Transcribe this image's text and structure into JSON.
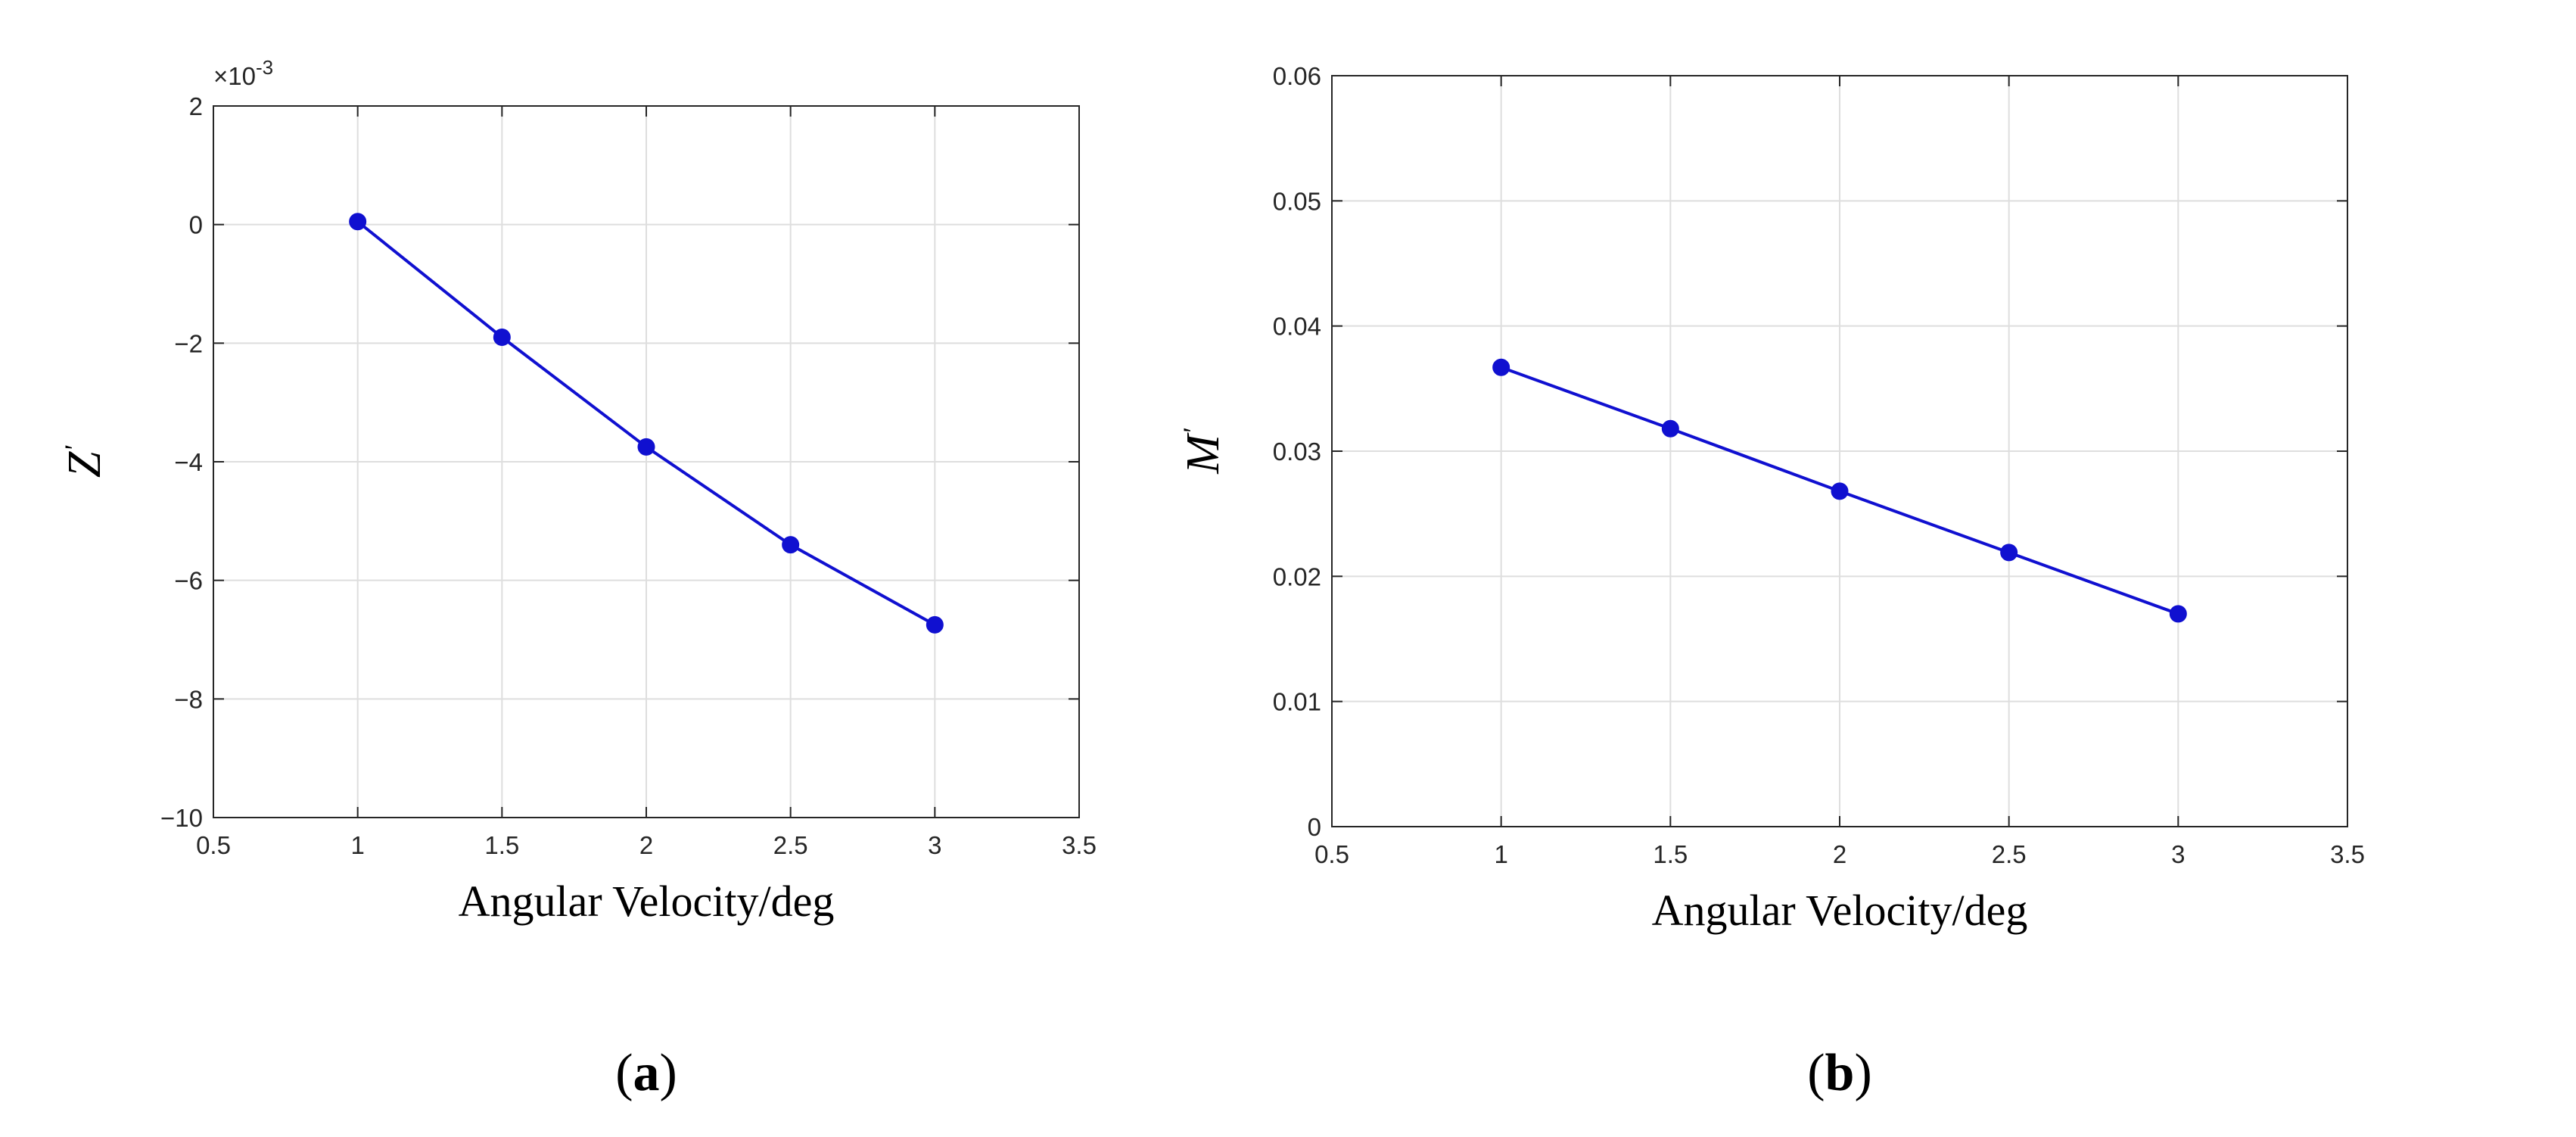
{
  "chart_data": [
    {
      "type": "line",
      "panel_label": "a",
      "xlabel": "Angular Velocity/deg",
      "ylabel": "Z",
      "ylabel_prime": "'",
      "y_exponent": "×10",
      "y_exponent_power": "-3",
      "xlim": [
        0.5,
        3.5
      ],
      "ylim": [
        -10,
        2
      ],
      "xticks": [
        0.5,
        1,
        1.5,
        2,
        2.5,
        3,
        3.5
      ],
      "xtick_labels": [
        "0.5",
        "1",
        "1.5",
        "2",
        "2.5",
        "3",
        "3.5"
      ],
      "yticks": [
        -10,
        -8,
        -6,
        -4,
        -2,
        0,
        2
      ],
      "ytick_labels": [
        "−10",
        "−8",
        "−6",
        "−4",
        "−2",
        "0",
        "2"
      ],
      "grid": true,
      "color": "#1010d0",
      "series": [
        {
          "x": [
            1,
            1.5,
            2,
            2.5,
            3
          ],
          "y": [
            0.05,
            -1.9,
            -3.75,
            -5.4,
            -6.75
          ]
        }
      ]
    },
    {
      "type": "line",
      "panel_label": "b",
      "xlabel": "Angular Velocity/deg",
      "ylabel": "M",
      "ylabel_prime": "'",
      "xlim": [
        0.5,
        3.5
      ],
      "ylim": [
        0,
        0.06
      ],
      "xticks": [
        0.5,
        1,
        1.5,
        2,
        2.5,
        3,
        3.5
      ],
      "xtick_labels": [
        "0.5",
        "1",
        "1.5",
        "2",
        "2.5",
        "3",
        "3.5"
      ],
      "yticks": [
        0,
        0.01,
        0.02,
        0.03,
        0.04,
        0.05,
        0.06
      ],
      "ytick_labels": [
        "0",
        "0.01",
        "0.02",
        "0.03",
        "0.04",
        "0.05",
        "0.06"
      ],
      "grid": true,
      "color": "#1010d0",
      "series": [
        {
          "x": [
            1,
            1.5,
            2,
            2.5,
            3
          ],
          "y": [
            0.0367,
            0.0318,
            0.0268,
            0.0219,
            0.017
          ]
        }
      ]
    }
  ]
}
